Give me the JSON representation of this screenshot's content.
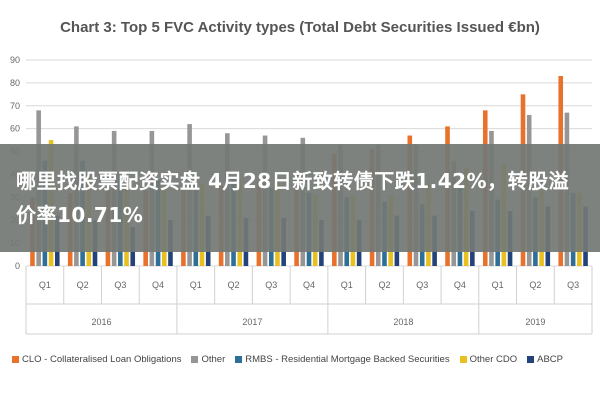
{
  "banner_text": "哪里找股票配资实盘 4月28日新致转债下跌1.42%，转股溢价率10.71%",
  "chart_data": {
    "type": "bar",
    "title": "Chart 3: Top 5 FVC Activity types (Total Debt Securities Issued €bn)",
    "xlabel": "",
    "ylabel": "",
    "ylim": [
      0,
      90
    ],
    "yticks": [
      "0",
      "10",
      "20",
      "30",
      "40",
      "50",
      "60",
      "70",
      "80",
      "90"
    ],
    "categories": [
      "Q1",
      "Q2",
      "Q3",
      "Q4",
      "Q1",
      "Q2",
      "Q3",
      "Q4",
      "Q1",
      "Q2",
      "Q3",
      "Q4",
      "Q1",
      "Q2",
      "Q3"
    ],
    "year_groups": [
      {
        "label": "2016",
        "count": 4
      },
      {
        "label": "2017",
        "count": 4
      },
      {
        "label": "2018",
        "count": 4
      },
      {
        "label": "2019",
        "count": 3
      }
    ],
    "grid": true,
    "legend_position": "bottom",
    "series": [
      {
        "name": "CLO - Collateralised Loan Obligations",
        "color": "#e8722c",
        "values": [
          30,
          32,
          33,
          33,
          34,
          35,
          37,
          40,
          49,
          51,
          57,
          61,
          68,
          75,
          83
        ]
      },
      {
        "name": "Other",
        "color": "#969696",
        "values": [
          68,
          61,
          59,
          59,
          62,
          58,
          57,
          56,
          53,
          53,
          53,
          46,
          59,
          66,
          67
        ]
      },
      {
        "name": "RMBS - Residential Mortgage Backed Securities",
        "color": "#2e6f97",
        "values": [
          46,
          46,
          40,
          38,
          36,
          38,
          34,
          32,
          30,
          28,
          27,
          35,
          29,
          30,
          32
        ]
      },
      {
        "name": "Other CDO",
        "color": "#e8c020",
        "values": [
          55,
          39,
          38,
          35,
          36,
          38,
          37,
          31,
          31,
          31,
          36,
          43,
          45,
          33,
          32
        ]
      },
      {
        "name": "ABCP",
        "color": "#24437a",
        "values": [
          22,
          20,
          17,
          20,
          22,
          21,
          21,
          20,
          20,
          22,
          22,
          24,
          24,
          26,
          26
        ]
      }
    ]
  }
}
